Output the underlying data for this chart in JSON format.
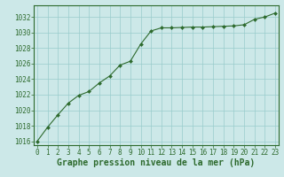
{
  "x_data": [
    0,
    1,
    2,
    3,
    4,
    5,
    6,
    7,
    8,
    9,
    10,
    11,
    12,
    13,
    14,
    15,
    16,
    17,
    18,
    19,
    20,
    21,
    22,
    23
  ],
  "y_data": [
    1016.0,
    1017.8,
    1019.4,
    1020.9,
    1021.9,
    1022.4,
    1023.5,
    1024.4,
    1025.8,
    1026.3,
    1028.5,
    1030.2,
    1030.6,
    1030.6,
    1030.65,
    1030.7,
    1030.7,
    1030.75,
    1030.8,
    1030.85,
    1031.0,
    1031.7,
    1032.0,
    1032.5
  ],
  "ylim": [
    1015.5,
    1033.5
  ],
  "yticks": [
    1016,
    1018,
    1020,
    1022,
    1024,
    1026,
    1028,
    1030,
    1032
  ],
  "xticks": [
    0,
    1,
    2,
    3,
    4,
    5,
    6,
    7,
    8,
    9,
    10,
    11,
    12,
    13,
    14,
    15,
    16,
    17,
    18,
    19,
    20,
    21,
    22,
    23
  ],
  "xlim": [
    -0.3,
    23.3
  ],
  "line_color": "#2d6a2d",
  "marker_color": "#2d6a2d",
  "bg_color": "#cce8e8",
  "grid_color": "#99cccc",
  "border_color": "#2d6a2d",
  "xlabel": "Graphe pression niveau de la mer (hPa)",
  "xlabel_color": "#2d6a2d",
  "tick_color": "#2d6a2d",
  "xlabel_fontsize": 7,
  "tick_fontsize": 5.5
}
